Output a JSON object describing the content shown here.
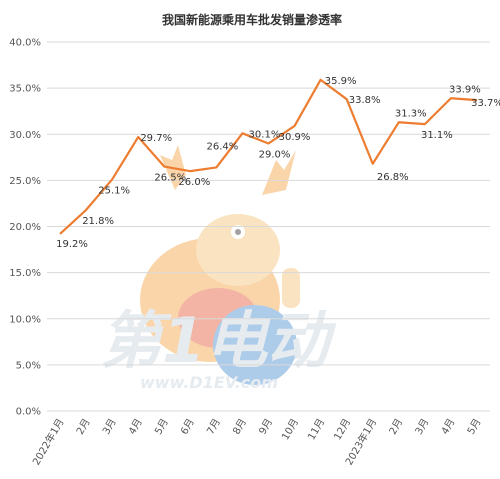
{
  "chart_data": {
    "type": "line",
    "title": "我国新能源乘用车批发销量渗透率",
    "xlabel": "",
    "ylabel": "",
    "ylim": [
      0,
      40
    ],
    "yticks": [
      "0.0%",
      "5.0%",
      "10.0%",
      "15.0%",
      "20.0%",
      "25.0%",
      "30.0%",
      "35.0%",
      "40.0%"
    ],
    "categories": [
      "2022年1月",
      "2月",
      "3月",
      "4月",
      "5月",
      "6月",
      "7月",
      "8月",
      "9月",
      "10月",
      "11月",
      "12月",
      "2023年1月",
      "2月",
      "3月",
      "4月",
      "5月"
    ],
    "series": [
      {
        "values": [
          19.2,
          21.8,
          25.1,
          29.7,
          26.5,
          26.0,
          26.4,
          30.1,
          29.0,
          30.9,
          35.9,
          33.8,
          26.8,
          31.3,
          31.1,
          33.9,
          33.7
        ],
        "labels": [
          "19.2%",
          "21.8%",
          "25.1%",
          "29.7%",
          "26.5%",
          "26.0%",
          "26.4%",
          "30.1%",
          "29.0%",
          "30.9%",
          "35.9%",
          "33.8%",
          "26.8%",
          "31.3%",
          "31.1%",
          "33.9%",
          "33.7%"
        ],
        "color": "#ed7d31"
      }
    ],
    "grid": true,
    "legend": "none"
  },
  "watermark": {
    "brand_text": "第1电动",
    "url_text": "www.D1EV.com",
    "color": "#c9d3dd",
    "mascot_color": "#f5a442"
  }
}
